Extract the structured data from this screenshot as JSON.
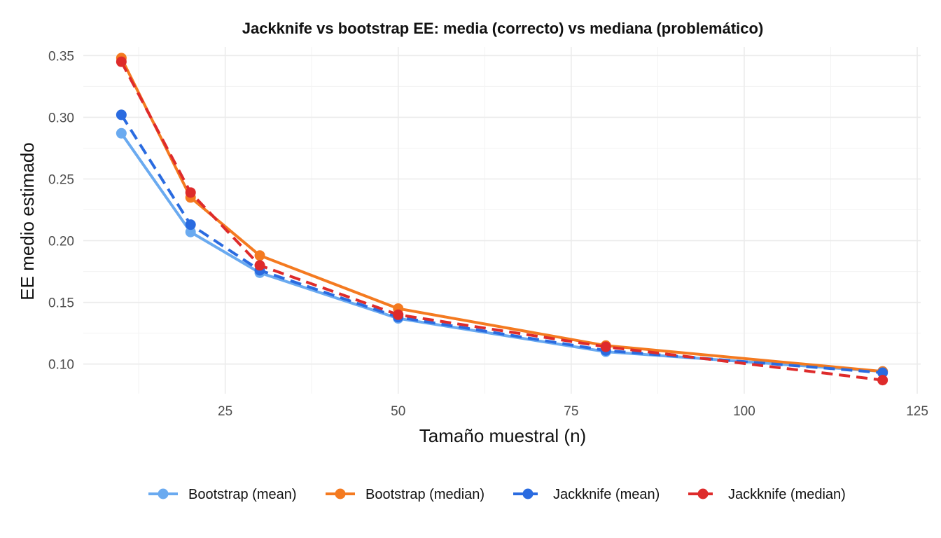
{
  "chart_data": {
    "type": "line",
    "title": "Jackknife vs bootstrap EE: media (correcto) vs mediana (problemático)",
    "xlabel": "Tamaño muestral (n)",
    "ylabel": "EE medio estimado",
    "x": [
      10,
      20,
      30,
      50,
      80,
      120
    ],
    "xlim": [
      4.5,
      125.5
    ],
    "ylim": [
      0.076,
      0.357
    ],
    "xticks": [
      25,
      50,
      75,
      100,
      125
    ],
    "xtick_labels": [
      "25",
      "50",
      "75",
      "100",
      "125"
    ],
    "yticks": [
      0.1,
      0.15,
      0.2,
      0.25,
      0.3,
      0.35
    ],
    "ytick_labels": [
      "0.10",
      "0.15",
      "0.20",
      "0.25",
      "0.30",
      "0.35"
    ],
    "grid": true,
    "legend_position": "bottom",
    "series": [
      {
        "name": "Bootstrap (mean)",
        "color": "#6aaaf0",
        "dashed": false,
        "values": [
          0.287,
          0.207,
          0.174,
          0.137,
          0.11,
          0.094
        ]
      },
      {
        "name": "Bootstrap (median)",
        "color": "#f47a20",
        "dashed": false,
        "values": [
          0.348,
          0.235,
          0.188,
          0.145,
          0.115,
          0.094
        ]
      },
      {
        "name": "Jackknife (mean)",
        "color": "#2a6be0",
        "dashed": true,
        "values": [
          0.302,
          0.213,
          0.176,
          0.138,
          0.111,
          0.093
        ]
      },
      {
        "name": "Jackknife (median)",
        "color": "#de2b2b",
        "dashed": true,
        "values": [
          0.345,
          0.239,
          0.18,
          0.14,
          0.114,
          0.087
        ]
      }
    ]
  }
}
